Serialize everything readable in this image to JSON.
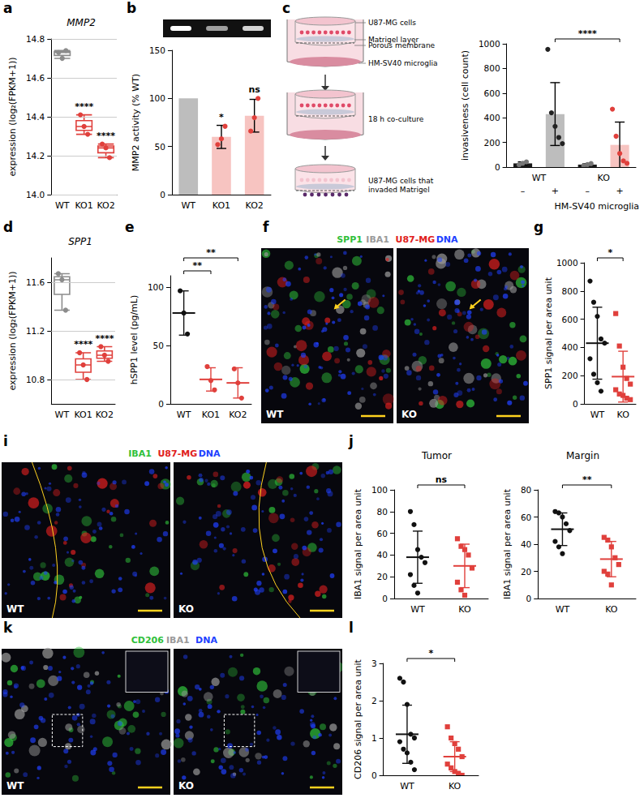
{
  "diagram": {
    "panel": "c",
    "layers": [
      "U87-MG cells",
      "Matrigel layer",
      "Porous membrane",
      "HM-SV40 microglia"
    ],
    "step": "18 h co-culture",
    "result": "U87-MG cells that invaded Matrigel"
  },
  "images": [
    {
      "panel": "f",
      "channels": [
        {
          "text": "SPP1",
          "color": "#2fbf3a"
        },
        {
          "text": "IBA1",
          "color": "#9a9a9a"
        },
        {
          "text": "U87-MG",
          "color": "#e02020"
        },
        {
          "text": "DNA",
          "color": "#2040ff"
        }
      ],
      "frames": [
        "WT",
        "KO"
      ]
    },
    {
      "panel": "i",
      "channels": [
        {
          "text": "IBA1",
          "color": "#2fbf3a"
        },
        {
          "text": "U87-MG",
          "color": "#e02020"
        },
        {
          "text": "DNA",
          "color": "#2040ff"
        }
      ],
      "frames": [
        "WT",
        "KO"
      ]
    },
    {
      "panel": "k",
      "channels": [
        {
          "text": "CD206",
          "color": "#2fbf3a"
        },
        {
          "text": "IBA1",
          "color": "#9a9a9a"
        },
        {
          "text": "DNA",
          "color": "#2040ff"
        }
      ],
      "frames": [
        "WT",
        "KO"
      ]
    }
  ],
  "chart_data": [
    {
      "panel": "a",
      "type": "box",
      "title": "MMP2",
      "y_label": "expression (log₂(FPKM+1))",
      "categories": [
        "WT",
        "KO1",
        "KO2"
      ],
      "colors": [
        "#8c8c8c",
        "#e0403c",
        "#e0403c"
      ],
      "boxes": [
        [
          14.7,
          14.715,
          14.73,
          14.735,
          14.74
        ],
        [
          14.31,
          14.33,
          14.35,
          14.38,
          14.41
        ],
        [
          14.19,
          14.215,
          14.24,
          14.25,
          14.26
        ]
      ],
      "points": [
        [
          14.73,
          14.7,
          14.74
        ],
        [
          14.41,
          14.35,
          14.31
        ],
        [
          14.26,
          14.24,
          14.19
        ]
      ],
      "ylim": [
        14.0,
        14.8
      ],
      "yticks": [
        {
          "value": 14.0,
          "label": "14.0"
        },
        14.2,
        14.4,
        14.6,
        14.8
      ],
      "grid": true,
      "annotations": [
        {
          "category": "KO1",
          "text": "****"
        },
        {
          "category": "KO2",
          "text": "****"
        }
      ]
    },
    {
      "panel": "b",
      "type": "bar",
      "y_label": "MMP2 activity (% WT)",
      "categories": [
        "WT",
        "KO1",
        "KO2"
      ],
      "values": [
        100,
        60,
        82
      ],
      "errors": [
        null,
        12,
        17
      ],
      "points": [
        [],
        [
          52,
          58,
          71
        ],
        [
          66,
          80,
          100
        ]
      ],
      "colors": [
        "#bdbdbd",
        "#f7c4c1",
        "#f7c4c1"
      ],
      "ylim": [
        0,
        150
      ],
      "yticks": [
        0,
        50,
        100,
        150
      ],
      "annotations": [
        {
          "category": "KO1",
          "text": "*"
        },
        {
          "category": "KO2",
          "text": "ns"
        }
      ]
    },
    {
      "type": "bar",
      "y_label": "invasiveness (cell count)",
      "x_label": "HM-SV40 microglia",
      "groups": [
        "WT",
        "KO"
      ],
      "categories": [
        "–",
        "+",
        "–",
        "+"
      ],
      "values": [
        30,
        430,
        20,
        180
      ],
      "errors": [
        12,
        255,
        8,
        185
      ],
      "points": [
        [
          18,
          30,
          42
        ],
        [
          955,
          440,
          330,
          240,
          190
        ],
        [
          12,
          20,
          28
        ],
        [
          470,
          250,
          110,
          50,
          30
        ]
      ],
      "colors": [
        "#1a1a1a",
        "#bdbdbd",
        "#1a1a1a",
        "#f7c4c1"
      ],
      "ylim": [
        0,
        1000
      ],
      "yticks": [
        0,
        200,
        400,
        600,
        800,
        1000
      ],
      "annotations": [
        {
          "between": [
            1,
            3
          ],
          "text": "****"
        }
      ]
    },
    {
      "panel": "d",
      "type": "box",
      "title": "SPP1",
      "y_label": "expression (log₂(FPKM+1))",
      "categories": [
        "WT",
        "KO1",
        "KO2"
      ],
      "colors": [
        "#8c8c8c",
        "#e0403c",
        "#e0403c"
      ],
      "boxes": [
        [
          11.37,
          11.5,
          11.62,
          11.645,
          11.67
        ],
        [
          10.8,
          10.86,
          10.92,
          10.97,
          11.02
        ],
        [
          10.95,
          10.975,
          11.0,
          11.035,
          11.07
        ]
      ],
      "points": [
        [
          11.67,
          11.62,
          11.37
        ],
        [
          11.02,
          10.92,
          10.8
        ],
        [
          11.07,
          11.0,
          10.95
        ]
      ],
      "ylim": [
        10.6,
        11.8
      ],
      "yticks": [
        10.8,
        11.2,
        11.6
      ],
      "grid": true,
      "annotations": [
        {
          "category": "KO1",
          "text": "****"
        },
        {
          "category": "KO2",
          "text": "****"
        }
      ]
    },
    {
      "panel": "e",
      "type": "dot",
      "y_label": "hSPP1 level (pg/mL)",
      "series": [
        {
          "name": "WT",
          "color": "#111111",
          "marker": "circle",
          "values": [
            97,
            78,
            60
          ],
          "mean": 78,
          "error": 19
        },
        {
          "name": "KO1",
          "color": "#e0403c",
          "marker": "circle",
          "values": [
            32,
            20,
            12
          ],
          "mean": 21,
          "error": 10
        },
        {
          "name": "KO2",
          "color": "#e0403c",
          "marker": "circle",
          "values": [
            30,
            18,
            5
          ],
          "mean": 18,
          "error": 13
        }
      ],
      "ylim": [
        0,
        110
      ],
      "yticks": [
        0,
        50,
        100
      ],
      "annotations": [
        {
          "between": [
            0,
            1
          ],
          "text": "**"
        },
        {
          "between": [
            0,
            2
          ],
          "text": "**"
        }
      ]
    },
    {
      "panel": "g",
      "type": "dot",
      "y_label": "SPP1 signal per area unit",
      "series": [
        {
          "name": "WT",
          "color": "#111111",
          "marker": "circle",
          "values": [
            870,
            720,
            620,
            460,
            430,
            320,
            210,
            150,
            90
          ],
          "mean": 430,
          "error": 255
        },
        {
          "name": "KO",
          "color": "#e0403c",
          "marker": "square",
          "values": [
            640,
            410,
            260,
            180,
            140,
            100,
            70,
            60,
            40,
            30
          ],
          "mean": 193,
          "error": 180
        }
      ],
      "ylim": [
        0,
        1000
      ],
      "yticks": [
        0,
        200,
        400,
        600,
        800,
        1000
      ],
      "annotations": [
        {
          "between": [
            0,
            1
          ],
          "text": "*"
        }
      ]
    },
    {
      "panel": "j",
      "type": "dot",
      "title": "Tumor",
      "y_label": "IBA1 signal per area unit",
      "series": [
        {
          "name": "WT",
          "color": "#111111",
          "marker": "circle",
          "values": [
            80,
            68,
            45,
            38,
            33,
            22,
            12,
            5
          ],
          "mean": 38,
          "error": 24
        },
        {
          "name": "KO",
          "color": "#e0403c",
          "marker": "square",
          "values": [
            55,
            48,
            45,
            40,
            28,
            15,
            8,
            3
          ],
          "mean": 30,
          "error": 20
        }
      ],
      "ylim": [
        0,
        100
      ],
      "yticks": [
        0,
        20,
        40,
        60,
        80,
        100
      ],
      "annotations": [
        {
          "between": [
            0,
            1
          ],
          "text": "ns"
        }
      ]
    },
    {
      "type": "dot",
      "title": "Margin",
      "y_label": "IBA1 signal per area unit",
      "series": [
        {
          "name": "WT",
          "color": "#111111",
          "marker": "circle",
          "values": [
            64,
            63,
            60,
            55,
            50,
            42,
            38,
            33
          ],
          "mean": 51,
          "error": 12
        },
        {
          "name": "KO",
          "color": "#e0403c",
          "marker": "square",
          "values": [
            45,
            43,
            38,
            30,
            25,
            20,
            18,
            10
          ],
          "mean": 29,
          "error": 13
        }
      ],
      "ylim": [
        0,
        80
      ],
      "yticks": [
        0,
        20,
        40,
        60,
        80
      ],
      "annotations": [
        {
          "between": [
            0,
            1
          ],
          "text": "**"
        }
      ]
    },
    {
      "panel": "l",
      "type": "dot",
      "y_label": "CD206 signal per area unit",
      "series": [
        {
          "name": "WT",
          "color": "#111111",
          "marker": "circle",
          "values": [
            2.6,
            2.5,
            1.9,
            1.1,
            1.0,
            0.9,
            0.7,
            0.6,
            0.35,
            0.15
          ],
          "mean": 1.1,
          "error": 0.78
        },
        {
          "name": "KO",
          "color": "#e0403c",
          "marker": "square",
          "values": [
            1.3,
            1.0,
            0.85,
            0.7,
            0.5,
            0.3,
            0.2,
            0.1,
            0.05,
            0.0
          ],
          "mean": 0.5,
          "error": 0.4
        }
      ],
      "ylim": [
        0,
        3
      ],
      "yticks": [
        0,
        1,
        2,
        3
      ],
      "annotations": [
        {
          "between": [
            0,
            1
          ],
          "text": "*"
        }
      ]
    }
  ]
}
